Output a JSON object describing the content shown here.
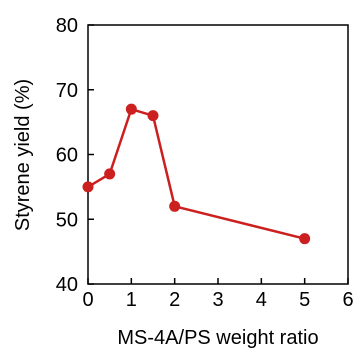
{
  "chart_data": {
    "type": "line",
    "title": "",
    "xlabel": "MS-4A/PS weight ratio",
    "ylabel": "Styrene yield (%)",
    "xlim": [
      0,
      6
    ],
    "ylim": [
      40,
      80
    ],
    "xticks": [
      "0",
      "1",
      "2",
      "3",
      "4",
      "5",
      "6"
    ],
    "yticks": [
      "40",
      "50",
      "60",
      "70",
      "80"
    ],
    "grid": false,
    "series": [
      {
        "x": [
          0,
          0.5,
          1,
          1.5,
          2,
          5
        ],
        "y": [
          55,
          57,
          67,
          66,
          52,
          47
        ],
        "color": "#cc1f1f"
      }
    ]
  }
}
